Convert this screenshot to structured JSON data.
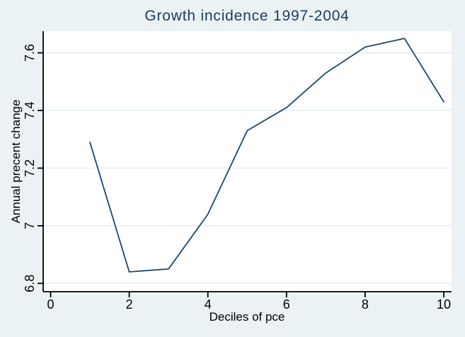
{
  "colors": {
    "figure_background": "#EAF2F3",
    "plot_background": "#FFFFFF",
    "gridline": "#E6EFF2",
    "axis": "#000000",
    "tick_label_text": "#000000",
    "axis_title_text": "#000000",
    "title_text": "#1E3A5F",
    "line": "#1A476F"
  },
  "chart_data": {
    "type": "line",
    "title": "Growth incidence 1997-2004",
    "xlabel": "Deciles of pce",
    "ylabel": "Annual precent change",
    "x": [
      1,
      2,
      3,
      4,
      5,
      6,
      7,
      8,
      9,
      10
    ],
    "y": [
      7.29,
      6.84,
      6.85,
      7.04,
      7.33,
      7.41,
      7.53,
      7.62,
      7.65,
      7.43
    ],
    "x_tick_values": [
      0,
      2,
      4,
      6,
      8,
      10
    ],
    "x_tick_labels": [
      "0",
      "2",
      "4",
      "6",
      "8",
      "10"
    ],
    "y_tick_values": [
      6.8,
      7.0,
      7.2,
      7.4,
      7.6
    ],
    "y_tick_labels": [
      "6.8",
      "7",
      "7.2",
      "7.4",
      "7.6"
    ],
    "xlim": [
      -0.2,
      10.2
    ],
    "ylim": [
      6.77,
      7.68
    ],
    "grid": "horizontal-only",
    "legend": "none",
    "y_tick_label_rotation": "vertical"
  }
}
